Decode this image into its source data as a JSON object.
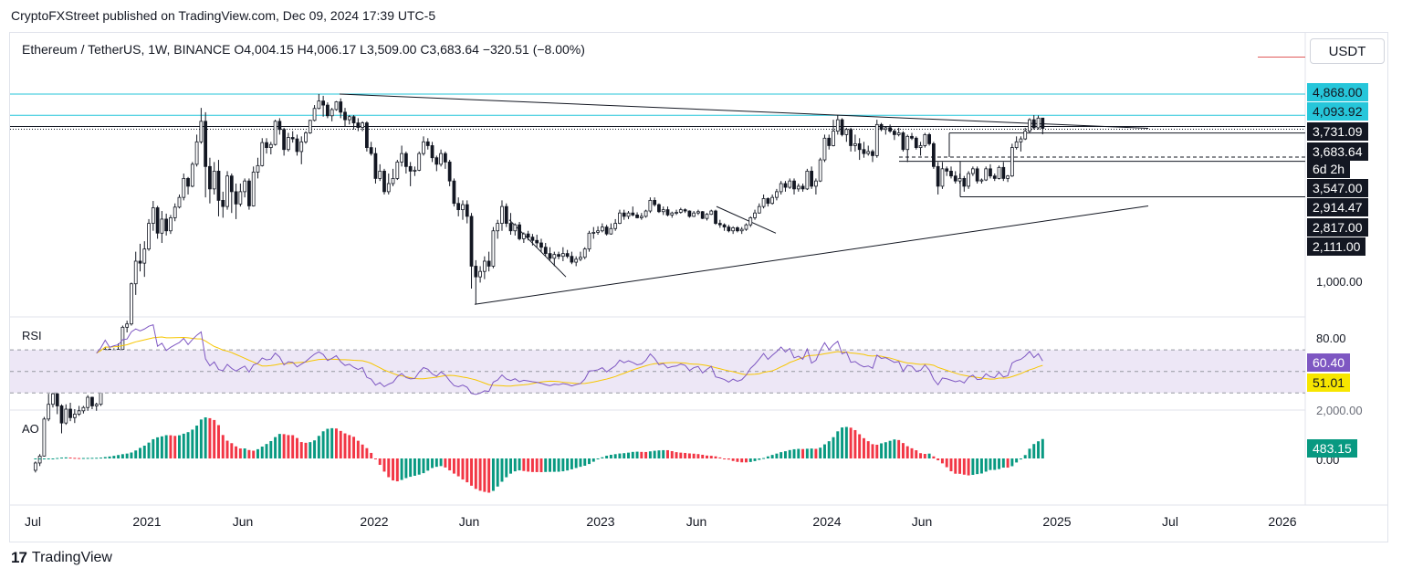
{
  "header": {
    "publisher": "CryptoFXStreet published on TradingView.com, Dec 09, 2024 17:39 UTC-5"
  },
  "legend": {
    "ohlc": "Ethereum / TetherUS, 1W, BINANCE  O4,004.15  H4,006.17  L3,509.00  C3,683.64  −320.51 (−8.00%)"
  },
  "currency_button": "USDT",
  "price_labels": [
    {
      "text": "4,868.00",
      "bg": "#26c6da",
      "fg": "#131722"
    },
    {
      "text": "4,093.92",
      "bg": "#26c6da",
      "fg": "#131722"
    },
    {
      "text": "3,731.09",
      "bg": "#131722",
      "fg": "#ffffff"
    },
    {
      "text": "3,683.64",
      "bg": "#131722",
      "fg": "#ffffff"
    },
    {
      "text": "6d 2h",
      "bg": "#131722",
      "fg": "#ffffff"
    },
    {
      "text": "3,547.00",
      "bg": "#131722",
      "fg": "#ffffff"
    },
    {
      "text": "2,914.47",
      "bg": "#131722",
      "fg": "#ffffff"
    },
    {
      "text": "2,817.00",
      "bg": "#131722",
      "fg": "#ffffff"
    },
    {
      "text": "2,111.00",
      "bg": "#131722",
      "fg": "#ffffff"
    }
  ],
  "price_axis_plain": [
    "1,000.00"
  ],
  "rsi_pane": {
    "label": "RSI",
    "axis": [
      "80.00"
    ],
    "rsi_value": "60.40",
    "rsi_color": "#7e57c2",
    "ma_value": "51.01",
    "ma_color": "#f7e600"
  },
  "ao_pane": {
    "label": "AO",
    "axis_top": "2,000.00",
    "axis_zero": "0.00",
    "value": "483.15",
    "value_bg": "#089981"
  },
  "x_axis": [
    "Jul",
    "2021",
    "Jun",
    "2022",
    "Jun",
    "2023",
    "Jun",
    "2024",
    "Jun",
    "2025",
    "Jul",
    "2026"
  ],
  "footer": {
    "brand": "TradingView",
    "logo_glyph": "17"
  },
  "colors": {
    "up": "#089981",
    "down": "#f23645",
    "level_line": "#26c6da",
    "rsi_band": "#ede7f6"
  },
  "chart_data": {
    "type": "candlestick",
    "symbol": "ETHUSDT",
    "timeframe": "1W",
    "price_log_scale": true,
    "price_range": [
      700,
      5400
    ],
    "key_levels": [
      4868.0,
      4093.92,
      3731.09,
      3683.64,
      3547.0,
      2914.47,
      2817.0,
      2111.0
    ],
    "start": "2020-07-06",
    "candles_ohlc": [
      [
        228,
        245,
        224,
        242
      ],
      [
        242,
        260,
        236,
        256
      ],
      [
        256,
        352,
        255,
        346
      ],
      [
        346,
        425,
        340,
        390
      ],
      [
        390,
        445,
        380,
        425
      ],
      [
        425,
        430,
        360,
        385
      ],
      [
        385,
        390,
        308,
        335
      ],
      [
        335,
        390,
        330,
        375
      ],
      [
        375,
        395,
        340,
        350
      ],
      [
        350,
        375,
        335,
        360
      ],
      [
        360,
        385,
        355,
        370
      ],
      [
        370,
        385,
        362,
        380
      ],
      [
        380,
        420,
        370,
        413
      ],
      [
        413,
        415,
        375,
        385
      ],
      [
        385,
        395,
        370,
        390
      ],
      [
        390,
        475,
        385,
        460
      ],
      [
        460,
        620,
        450,
        610
      ],
      [
        610,
        615,
        530,
        560
      ],
      [
        560,
        615,
        550,
        590
      ],
      [
        590,
        640,
        560,
        610
      ],
      [
        610,
        740,
        600,
        730
      ],
      [
        730,
        770,
        700,
        750
      ],
      [
        750,
        1050,
        740,
        1040
      ],
      [
        1040,
        1350,
        950,
        1250
      ],
      [
        1250,
        1440,
        1150,
        1230
      ],
      [
        1230,
        1470,
        1100,
        1380
      ],
      [
        1380,
        1760,
        1360,
        1700
      ],
      [
        1700,
        2040,
        1600,
        1930
      ],
      [
        1930,
        1960,
        1500,
        1570
      ],
      [
        1570,
        1880,
        1450,
        1760
      ],
      [
        1760,
        1840,
        1540,
        1600
      ],
      [
        1600,
        1820,
        1560,
        1780
      ],
      [
        1780,
        2000,
        1730,
        1940
      ],
      [
        1940,
        2150,
        1920,
        2100
      ],
      [
        2100,
        2550,
        2050,
        2450
      ],
      [
        2450,
        2480,
        2150,
        2300
      ],
      [
        2300,
        2800,
        2280,
        2750
      ],
      [
        2750,
        3500,
        2700,
        3300
      ],
      [
        3300,
        4350,
        3250,
        3900
      ],
      [
        3900,
        4200,
        2100,
        2700
      ],
      [
        2700,
        2900,
        2000,
        2250
      ],
      [
        2250,
        2800,
        2150,
        2600
      ],
      [
        2600,
        2850,
        1800,
        2050
      ],
      [
        2050,
        2200,
        1780,
        1950
      ],
      [
        1950,
        2600,
        1900,
        2500
      ],
      [
        2500,
        2550,
        1850,
        2200
      ],
      [
        2200,
        2350,
        1760,
        1990
      ],
      [
        1990,
        2350,
        1950,
        2200
      ],
      [
        2200,
        2450,
        2100,
        2400
      ],
      [
        2400,
        2450,
        1900,
        1960
      ],
      [
        1960,
        2700,
        1950,
        2580
      ],
      [
        2580,
        2900,
        2450,
        2720
      ],
      [
        2720,
        3400,
        2700,
        3280
      ],
      [
        3280,
        3400,
        3000,
        3150
      ],
      [
        3150,
        3300,
        2980,
        3230
      ],
      [
        3230,
        3950,
        3200,
        3900
      ],
      [
        3900,
        4000,
        3500,
        3650
      ],
      [
        3650,
        3700,
        2950,
        3100
      ],
      [
        3100,
        3550,
        3050,
        3420
      ],
      [
        3420,
        3600,
        3280,
        3380
      ],
      [
        3380,
        3500,
        2950,
        3050
      ],
      [
        3050,
        3450,
        2750,
        3300
      ],
      [
        3300,
        3600,
        3250,
        3550
      ],
      [
        3550,
        3950,
        3520,
        3930
      ],
      [
        3930,
        4450,
        3900,
        4330
      ],
      [
        4330,
        4870,
        4300,
        4600
      ],
      [
        4600,
        4800,
        4050,
        4450
      ],
      [
        4450,
        4550,
        4000,
        4080
      ],
      [
        4080,
        4350,
        3900,
        4290
      ],
      [
        4290,
        4600,
        4250,
        4570
      ],
      [
        4570,
        4700,
        4000,
        4200
      ],
      [
        4200,
        4350,
        3750,
        3950
      ],
      [
        3950,
        4100,
        3800,
        4050
      ],
      [
        4050,
        4100,
        3650,
        3850
      ],
      [
        3850,
        4000,
        3600,
        3710
      ],
      [
        3710,
        3900,
        3600,
        3850
      ],
      [
        3850,
        3900,
        3050,
        3150
      ],
      [
        3150,
        3300,
        2950,
        3000
      ],
      [
        3000,
        3150,
        2350,
        2450
      ],
      [
        2450,
        2750,
        2400,
        2600
      ],
      [
        2600,
        2650,
        2150,
        2200
      ],
      [
        2200,
        2550,
        2150,
        2350
      ],
      [
        2350,
        2650,
        2300,
        2450
      ],
      [
        2450,
        2850,
        2420,
        2800
      ],
      [
        2800,
        3200,
        2700,
        3000
      ],
      [
        3000,
        3050,
        2550,
        2700
      ],
      [
        2700,
        2800,
        2300,
        2600
      ],
      [
        2600,
        2700,
        2500,
        2620
      ],
      [
        2620,
        3050,
        2600,
        3000
      ],
      [
        3000,
        3450,
        2950,
        3300
      ],
      [
        3300,
        3400,
        3100,
        3200
      ],
      [
        3200,
        3300,
        2800,
        2900
      ],
      [
        2900,
        2950,
        2600,
        2750
      ],
      [
        2750,
        3100,
        2700,
        3000
      ],
      [
        3000,
        3050,
        2650,
        2800
      ],
      [
        2800,
        2850,
        2300,
        2400
      ],
      [
        2400,
        2450,
        1950,
        2000
      ],
      [
        2000,
        2100,
        1800,
        1900
      ],
      [
        1900,
        2050,
        1750,
        1980
      ],
      [
        1980,
        2050,
        1700,
        1800
      ],
      [
        1800,
        1850,
        1000,
        1200
      ],
      [
        1200,
        1260,
        880,
        1100
      ],
      [
        1100,
        1200,
        1050,
        1150
      ],
      [
        1150,
        1300,
        1080,
        1250
      ],
      [
        1250,
        1350,
        1150,
        1200
      ],
      [
        1200,
        1650,
        1180,
        1600
      ],
      [
        1600,
        1750,
        1500,
        1700
      ],
      [
        1700,
        2050,
        1600,
        1950
      ],
      [
        1950,
        2000,
        1650,
        1700
      ],
      [
        1700,
        1850,
        1550,
        1600
      ],
      [
        1600,
        1700,
        1540,
        1680
      ],
      [
        1680,
        1720,
        1480,
        1500
      ],
      [
        1500,
        1580,
        1450,
        1560
      ],
      [
        1560,
        1600,
        1480,
        1520
      ],
      [
        1520,
        1560,
        1420,
        1480
      ],
      [
        1480,
        1550,
        1400,
        1450
      ],
      [
        1450,
        1500,
        1350,
        1400
      ],
      [
        1400,
        1450,
        1300,
        1330
      ],
      [
        1330,
        1400,
        1250,
        1280
      ],
      [
        1280,
        1350,
        1200,
        1320
      ],
      [
        1320,
        1350,
        1270,
        1300
      ],
      [
        1300,
        1400,
        1250,
        1330
      ],
      [
        1330,
        1370,
        1280,
        1300
      ],
      [
        1300,
        1350,
        1220,
        1240
      ],
      [
        1240,
        1300,
        1200,
        1270
      ],
      [
        1270,
        1350,
        1250,
        1290
      ],
      [
        1290,
        1400,
        1270,
        1380
      ],
      [
        1380,
        1600,
        1350,
        1570
      ],
      [
        1570,
        1650,
        1500,
        1580
      ],
      [
        1580,
        1660,
        1550,
        1600
      ],
      [
        1600,
        1700,
        1580,
        1650
      ],
      [
        1650,
        1680,
        1540,
        1560
      ],
      [
        1560,
        1700,
        1550,
        1630
      ],
      [
        1630,
        1760,
        1600,
        1700
      ],
      [
        1700,
        1900,
        1690,
        1850
      ],
      [
        1850,
        1900,
        1750,
        1800
      ],
      [
        1800,
        1880,
        1760,
        1850
      ],
      [
        1850,
        1950,
        1800,
        1820
      ],
      [
        1820,
        1860,
        1770,
        1780
      ],
      [
        1780,
        1850,
        1750,
        1800
      ],
      [
        1800,
        1900,
        1780,
        1880
      ],
      [
        1880,
        2100,
        1850,
        2050
      ],
      [
        2050,
        2100,
        1950,
        1980
      ],
      [
        1980,
        2000,
        1850,
        1870
      ],
      [
        1870,
        1950,
        1820,
        1900
      ],
      [
        1900,
        1950,
        1800,
        1820
      ],
      [
        1820,
        1870,
        1780,
        1850
      ],
      [
        1850,
        1900,
        1820,
        1860
      ],
      [
        1860,
        1930,
        1840,
        1900
      ],
      [
        1900,
        1920,
        1850,
        1880
      ],
      [
        1880,
        1890,
        1780,
        1800
      ],
      [
        1800,
        1880,
        1790,
        1850
      ],
      [
        1850,
        1900,
        1820,
        1870
      ],
      [
        1870,
        1880,
        1760,
        1770
      ],
      [
        1770,
        1850,
        1740,
        1830
      ],
      [
        1830,
        1900,
        1820,
        1880
      ],
      [
        1880,
        1900,
        1680,
        1700
      ],
      [
        1700,
        1750,
        1640,
        1680
      ],
      [
        1680,
        1700,
        1600,
        1650
      ],
      [
        1650,
        1680,
        1580,
        1600
      ],
      [
        1600,
        1660,
        1560,
        1640
      ],
      [
        1640,
        1660,
        1580,
        1600
      ],
      [
        1600,
        1650,
        1560,
        1620
      ],
      [
        1620,
        1700,
        1600,
        1680
      ],
      [
        1680,
        1800,
        1650,
        1780
      ],
      [
        1780,
        1900,
        1750,
        1850
      ],
      [
        1850,
        2000,
        1840,
        1950
      ],
      [
        1950,
        2150,
        1920,
        2080
      ],
      [
        2080,
        2100,
        1950,
        2000
      ],
      [
        2000,
        2150,
        1980,
        2100
      ],
      [
        2100,
        2250,
        2050,
        2200
      ],
      [
        2200,
        2400,
        2150,
        2350
      ],
      [
        2350,
        2400,
        2200,
        2280
      ],
      [
        2280,
        2450,
        2250,
        2400
      ],
      [
        2400,
        2450,
        2150,
        2250
      ],
      [
        2250,
        2350,
        2200,
        2300
      ],
      [
        2300,
        2350,
        2200,
        2250
      ],
      [
        2250,
        2650,
        2230,
        2600
      ],
      [
        2600,
        2700,
        2250,
        2300
      ],
      [
        2300,
        2450,
        2150,
        2400
      ],
      [
        2400,
        2900,
        2380,
        2850
      ],
      [
        2850,
        3500,
        2800,
        3400
      ],
      [
        3400,
        3500,
        3100,
        3200
      ],
      [
        3200,
        3950,
        3180,
        3600
      ],
      [
        3600,
        4093,
        3500,
        3950
      ],
      [
        3950,
        4000,
        3450,
        3500
      ],
      [
        3500,
        3700,
        3300,
        3650
      ],
      [
        3650,
        3700,
        3050,
        3200
      ],
      [
        3200,
        3500,
        3050,
        3250
      ],
      [
        3250,
        3400,
        2850,
        3100
      ],
      [
        3100,
        3300,
        2900,
        3000
      ],
      [
        3000,
        3200,
        2950,
        3050
      ],
      [
        3050,
        3100,
        2800,
        2950
      ],
      [
        2950,
        3950,
        2900,
        3800
      ],
      [
        3800,
        3850,
        3600,
        3650
      ],
      [
        3650,
        3750,
        3500,
        3700
      ],
      [
        3700,
        3800,
        3550,
        3600
      ],
      [
        3600,
        3650,
        3350,
        3500
      ],
      [
        3500,
        3700,
        3450,
        3550
      ],
      [
        3550,
        3600,
        3050,
        3100
      ],
      [
        3100,
        3500,
        2800,
        3450
      ],
      [
        3450,
        3550,
        3350,
        3400
      ],
      [
        3400,
        3450,
        3100,
        3150
      ],
      [
        3150,
        3300,
        2950,
        3200
      ],
      [
        3200,
        3550,
        3150,
        3500
      ],
      [
        3500,
        3550,
        3200,
        3250
      ],
      [
        3250,
        3300,
        2650,
        2700
      ],
      [
        2700,
        2800,
        2150,
        2300
      ],
      [
        2300,
        2800,
        2250,
        2650
      ],
      [
        2650,
        2700,
        2500,
        2600
      ],
      [
        2600,
        2700,
        2450,
        2500
      ],
      [
        2500,
        2600,
        2350,
        2400
      ],
      [
        2400,
        2550,
        2350,
        2450
      ],
      [
        2450,
        2500,
        2200,
        2300
      ],
      [
        2300,
        2600,
        2250,
        2550
      ],
      [
        2550,
        2700,
        2500,
        2650
      ],
      [
        2650,
        2700,
        2350,
        2400
      ],
      [
        2400,
        2450,
        2350,
        2420
      ],
      [
        2420,
        2700,
        2400,
        2650
      ],
      [
        2650,
        2750,
        2450,
        2500
      ],
      [
        2500,
        2550,
        2400,
        2450
      ],
      [
        2450,
        2720,
        2430,
        2680
      ],
      [
        2680,
        2800,
        2400,
        2450
      ],
      [
        2450,
        2520,
        2380,
        2500
      ],
      [
        2500,
        3250,
        2480,
        3150
      ],
      [
        3150,
        3450,
        3100,
        3300
      ],
      [
        3300,
        3450,
        3050,
        3380
      ],
      [
        3380,
        3700,
        3350,
        3600
      ],
      [
        3600,
        4000,
        3550,
        3950
      ],
      [
        3950,
        4100,
        3650,
        3700
      ],
      [
        3700,
        4090,
        3650,
        4004
      ],
      [
        4004.15,
        4006.17,
        3509.0,
        3683.64
      ]
    ],
    "rsi": {
      "name": "RSI",
      "overbought": 70,
      "oversold": 30,
      "last_rsi": 60.4,
      "last_ma": 51.01
    },
    "ao": {
      "name": "AO",
      "last": 483.15
    }
  }
}
